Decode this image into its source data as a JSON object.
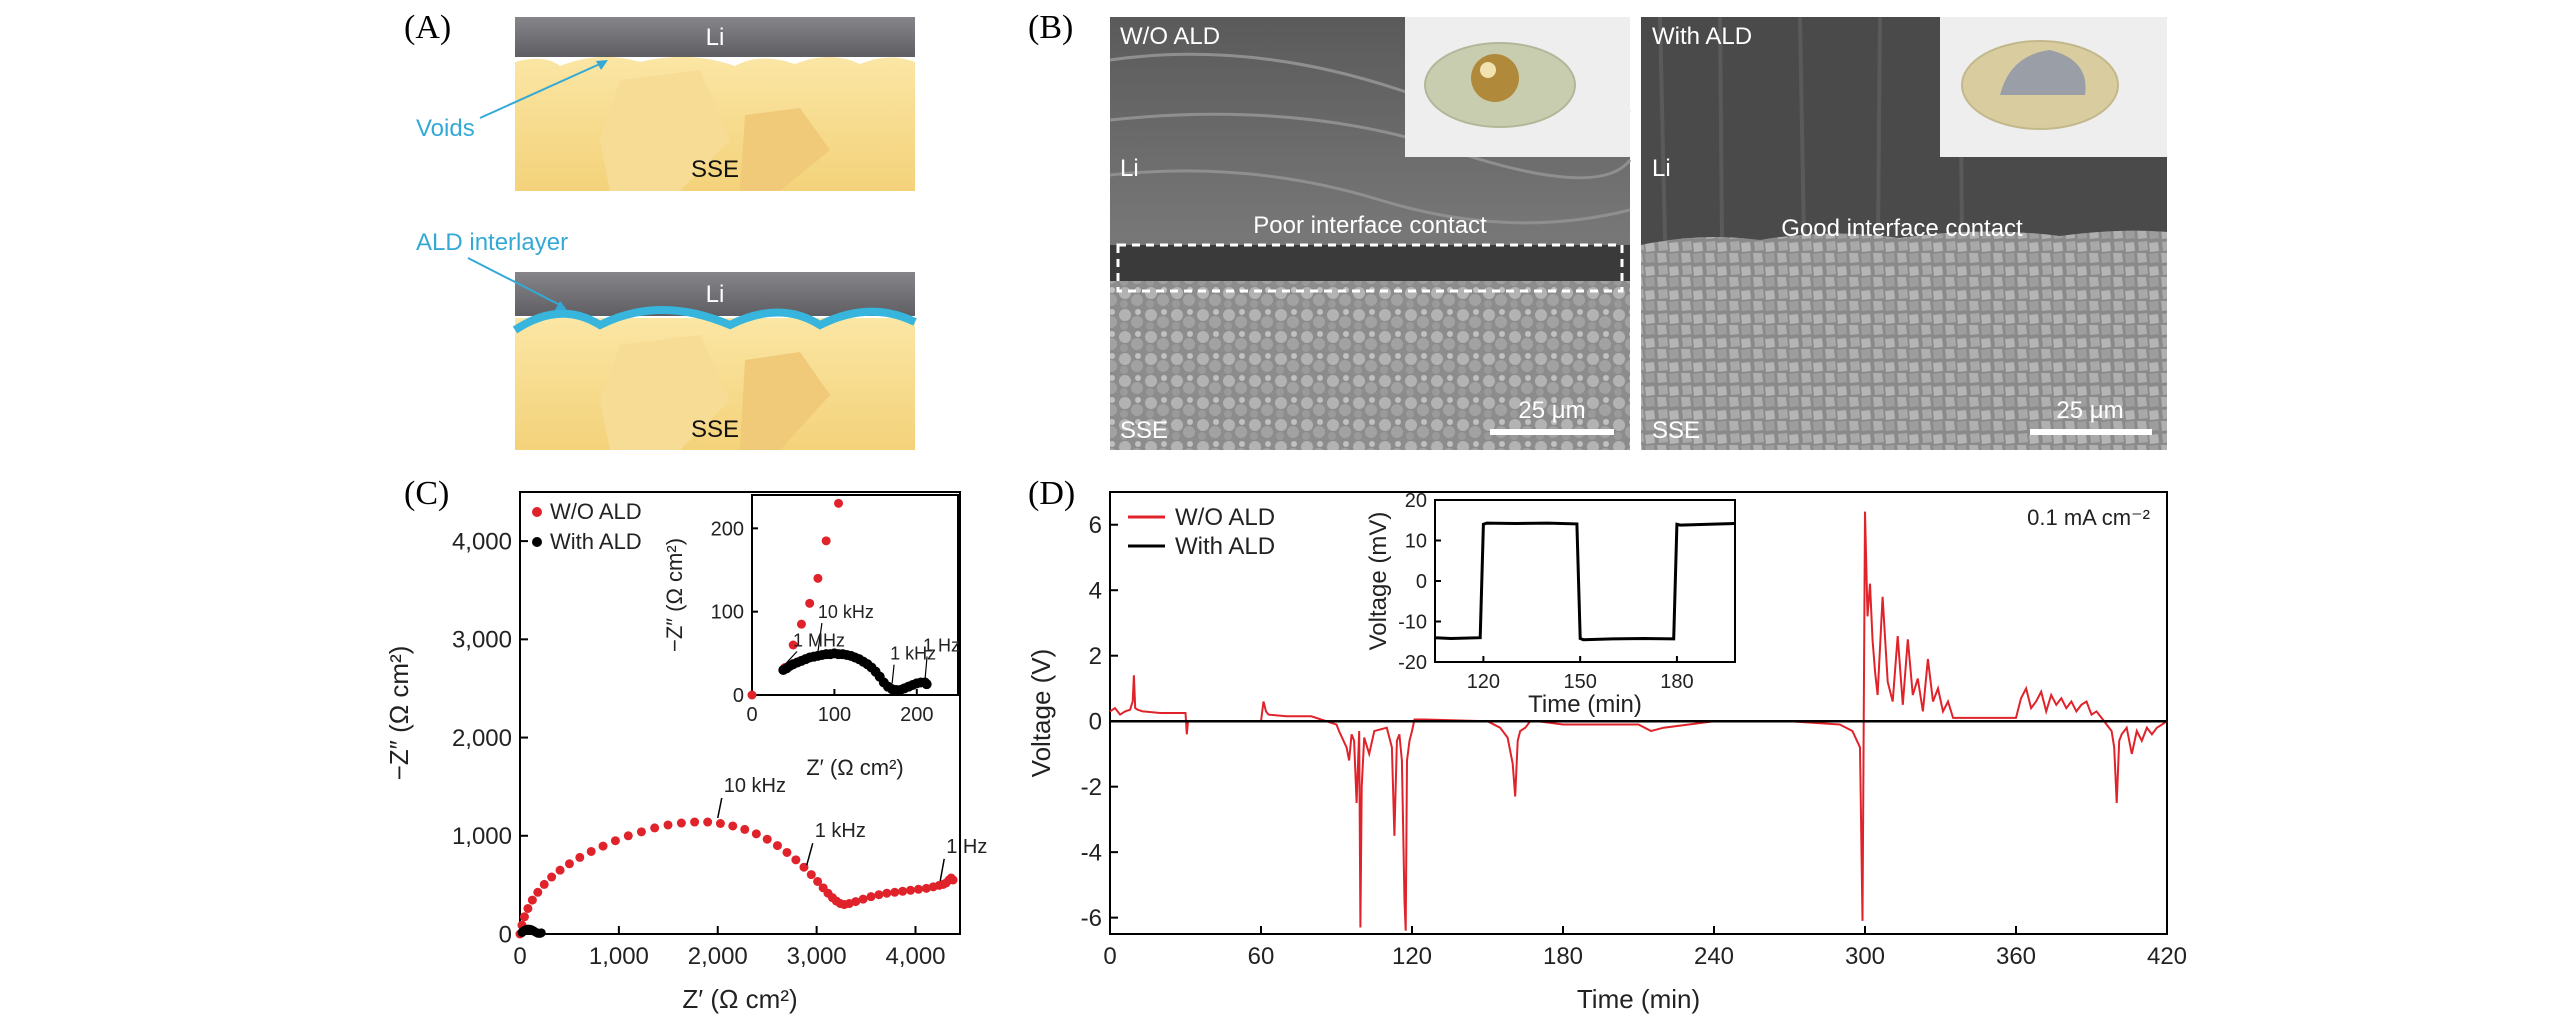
{
  "panels": {
    "a": {
      "label": "(A)",
      "top": {
        "li": "Li",
        "sse": "SSE",
        "voids": "Voids"
      },
      "bottom": {
        "li": "Li",
        "sse": "SSE",
        "ald": "ALD interlayer"
      }
    },
    "b": {
      "label": "(B)",
      "left": {
        "title": "W/O ALD",
        "li": "Li",
        "contact": "Poor interface contact",
        "scale": "25 μm",
        "sse": "SSE"
      },
      "right": {
        "title": "With ALD",
        "li": "Li",
        "contact": "Good interface contact",
        "scale": "25 μm",
        "sse": "SSE"
      }
    },
    "c": {
      "label": "(C)"
    },
    "d": {
      "label": "(D)"
    }
  },
  "colors": {
    "red": "#e0232a",
    "black": "#000000",
    "sse": "#f5d98a",
    "li": "#6f6f72",
    "ald": "#37b5dc",
    "callout": "#35a9d6"
  },
  "chart_data": [
    {
      "id": "C",
      "type": "scatter",
      "xlabel": "Z′ (Ω cm²)",
      "ylabel": "−Z″ (Ω cm²)",
      "xlim": [
        0,
        4450
      ],
      "ylim": [
        0,
        4500
      ],
      "xticks": [
        "0",
        "1,000",
        "2,000",
        "3,000",
        "4,000"
      ],
      "yticks": [
        "0",
        "1,000",
        "2,000",
        "3,000",
        "4,000"
      ],
      "legend": [
        "W/O ALD",
        "With ALD"
      ],
      "series": [
        {
          "name": "W/O ALD",
          "color": "#e0232a",
          "x": [
            0,
            20,
            45,
            80,
            125,
            180,
            245,
            320,
            405,
            500,
            605,
            720,
            840,
            965,
            1095,
            1228,
            1362,
            1497,
            1632,
            1766,
            1898,
            2027,
            2152,
            2273,
            2390,
            2500,
            2604,
            2700,
            2790,
            2872,
            2946,
            3010,
            3066,
            3115,
            3160,
            3200,
            3240,
            3280,
            3330,
            3395,
            3470,
            3550,
            3630,
            3710,
            3790,
            3870,
            3950,
            4030,
            4110,
            4180,
            4240,
            4280,
            4310,
            4340,
            4360,
            4380
          ],
          "y": [
            0,
            90,
            175,
            260,
            345,
            425,
            505,
            580,
            650,
            715,
            780,
            840,
            895,
            950,
            1000,
            1040,
            1080,
            1110,
            1130,
            1140,
            1140,
            1125,
            1100,
            1065,
            1020,
            965,
            900,
            830,
            755,
            680,
            605,
            535,
            470,
            415,
            370,
            335,
            310,
            300,
            310,
            330,
            355,
            380,
            400,
            415,
            425,
            435,
            445,
            455,
            465,
            480,
            495,
            505,
            520,
            550,
            570,
            550
          ],
          "annotations": [
            {
              "text": "10 kHz",
              "x": 2000,
              "y": 1140
            },
            {
              "text": "1 kHz",
              "x": 2900,
              "y": 660
            },
            {
              "text": "1 Hz",
              "x": 4250,
              "y": 500
            }
          ]
        },
        {
          "name": "With ALD",
          "color": "#000000",
          "x": [
            20,
            40,
            60,
            80,
            100,
            120,
            140,
            160,
            180,
            200,
            215
          ],
          "y": [
            15,
            35,
            45,
            50,
            48,
            42,
            30,
            18,
            8,
            6,
            12
          ]
        }
      ],
      "inset": {
        "type": "scatter",
        "xlabel": "Z′ (Ω cm²)",
        "ylabel": "−Z″ (Ω cm²)",
        "xlim": [
          0,
          250
        ],
        "ylim": [
          0,
          240
        ],
        "xticks": [
          "0",
          "100",
          "200"
        ],
        "yticks": [
          "0",
          "100",
          "200"
        ],
        "series": [
          {
            "name": "W/O ALD",
            "color": "#e0232a",
            "x": [
              0,
              40,
              50,
              60,
              70,
              80,
              90,
              105
            ],
            "y": [
              0,
              33,
              60,
              85,
              110,
              140,
              185,
              230
            ]
          },
          {
            "name": "With ALD",
            "color": "#000000",
            "x": [
              38,
              42,
              46,
              50,
              55,
              60,
              65,
              70,
              75,
              80,
              85,
              90,
              95,
              100,
              105,
              110,
              115,
              120,
              125,
              130,
              135,
              140,
              145,
              150,
              155,
              160,
              165,
              170,
              175,
              180,
              185,
              190,
              195,
              200,
              205,
              210,
              212
            ],
            "y": [
              30,
              32,
              35,
              37,
              39,
              41,
              43,
              45,
              46,
              47,
              48,
              49,
              49,
              50,
              49,
              49,
              48,
              47,
              45,
              43,
              40,
              37,
              33,
              28,
              22,
              15,
              10,
              7,
              6,
              6,
              8,
              10,
              12,
              14,
              15,
              15,
              13
            ]
          }
        ],
        "annotations": [
          {
            "text": "10 kHz",
            "x": 80,
            "y": 48
          },
          {
            "text": "1 MHz",
            "x": 40,
            "y": 33
          },
          {
            "text": "1 kHz",
            "x": 170,
            "y": 10
          },
          {
            "text": "1 Hz",
            "x": 210,
            "y": 15
          }
        ]
      }
    },
    {
      "id": "D",
      "type": "line",
      "xlabel": "Time (min)",
      "ylabel": "Voltage (V)",
      "xlim": [
        0,
        420
      ],
      "ylim": [
        -6.5,
        7
      ],
      "xticks": [
        0,
        60,
        120,
        180,
        240,
        300,
        360,
        420
      ],
      "yticks": [
        -6,
        -4,
        -2,
        0,
        2,
        4,
        6
      ],
      "legend": [
        "W/O ALD",
        "With ALD"
      ],
      "annotation": "0.1 mA cm⁻²",
      "series": [
        {
          "name": "W/O ALD",
          "color": "#e0232a",
          "x": [
            0,
            2,
            4,
            6,
            8,
            9,
            9.5,
            10,
            11,
            13,
            20,
            30,
            30.5,
            31,
            40,
            50,
            60,
            61,
            62,
            63,
            70,
            80,
            90,
            91,
            94,
            95,
            96,
            97,
            98,
            99,
            99.5,
            100,
            101,
            103,
            105,
            110,
            112,
            113,
            114,
            115,
            116,
            117,
            117.5,
            118,
            119,
            120,
            121,
            122,
            125,
            150,
            155,
            158,
            160,
            161,
            162,
            163,
            165,
            167,
            170,
            180,
            210,
            215,
            220,
            230,
            240,
            270,
            290,
            295,
            298,
            299,
            300,
            301,
            302,
            303,
            304,
            305,
            307,
            309,
            311,
            313,
            315,
            317,
            319,
            321,
            323,
            325,
            327,
            329,
            331,
            333,
            335,
            360,
            362,
            364,
            366,
            368,
            370,
            372,
            374,
            376,
            378,
            380,
            382,
            384,
            386,
            388,
            390,
            392,
            394,
            396,
            398,
            399,
            400,
            401,
            402,
            404,
            406,
            408,
            410,
            412,
            414,
            416,
            418,
            420
          ],
          "y": [
            0.3,
            0.4,
            0.2,
            0.3,
            0.35,
            0.6,
            1.4,
            0.4,
            0.35,
            0.3,
            0.25,
            0.25,
            -0.4,
            0,
            0,
            0,
            0,
            0.6,
            0.3,
            0.2,
            0.15,
            0.15,
            -0.1,
            -0.3,
            -0.8,
            -1.2,
            -0.4,
            -0.6,
            -2.5,
            -0.3,
            -6.3,
            -2.0,
            -0.5,
            -1.0,
            -0.3,
            -0.2,
            -0.8,
            -3.5,
            -0.6,
            -0.4,
            -1.2,
            -5.5,
            -6.4,
            -1.2,
            -0.6,
            -0.3,
            0.05,
            0.05,
            0.05,
            0.0,
            -0.2,
            -0.5,
            -1.3,
            -2.3,
            -0.6,
            -0.3,
            -0.2,
            0.0,
            0.0,
            -0.1,
            -0.1,
            -0.3,
            -0.2,
            -0.1,
            0.0,
            0.0,
            -0.1,
            -0.3,
            -0.8,
            -6.1,
            6.4,
            3.2,
            4.2,
            2.5,
            1.5,
            0.8,
            3.8,
            1.2,
            0.6,
            2.6,
            0.5,
            2.5,
            0.8,
            1.3,
            0.3,
            1.9,
            0.6,
            1.0,
            0.3,
            0.6,
            0.1,
            0.1,
            0.7,
            1.0,
            0.4,
            0.6,
            0.9,
            0.3,
            0.8,
            0.5,
            0.7,
            0.4,
            0.6,
            0.3,
            0.5,
            0.6,
            0.2,
            0.3,
            0.1,
            -0.1,
            -0.3,
            -0.8,
            -2.5,
            -0.6,
            -0.4,
            -0.2,
            -1.0,
            -0.3,
            -0.6,
            -0.2,
            -0.4,
            -0.2,
            -0.1,
            0.0
          ]
        },
        {
          "name": "With ALD",
          "color": "#000000",
          "x": [
            0,
            420
          ],
          "y": [
            0.0,
            0.0
          ]
        }
      ],
      "inset": {
        "type": "line",
        "xlabel": "Time (min)",
        "ylabel": "Voltage (mV)",
        "xlim": [
          105,
          198
        ],
        "ylim": [
          -20,
          20
        ],
        "xticks": [
          120,
          150,
          180
        ],
        "yticks": [
          -20,
          -10,
          0,
          10,
          20
        ],
        "series": [
          {
            "name": "With ALD",
            "color": "#000000",
            "x": [
              105,
              110,
              119,
              120,
              121,
              130,
              140,
              149,
              150,
              151,
              160,
              170,
              179,
              180,
              181,
              190,
              198
            ],
            "y": [
              -14,
              -14.2,
              -14,
              14,
              14.3,
              14.2,
              14.3,
              14.1,
              -14.2,
              -14.5,
              -14.3,
              -14.2,
              -14.3,
              14,
              13.8,
              14,
              14.2
            ]
          }
        ]
      }
    }
  ]
}
